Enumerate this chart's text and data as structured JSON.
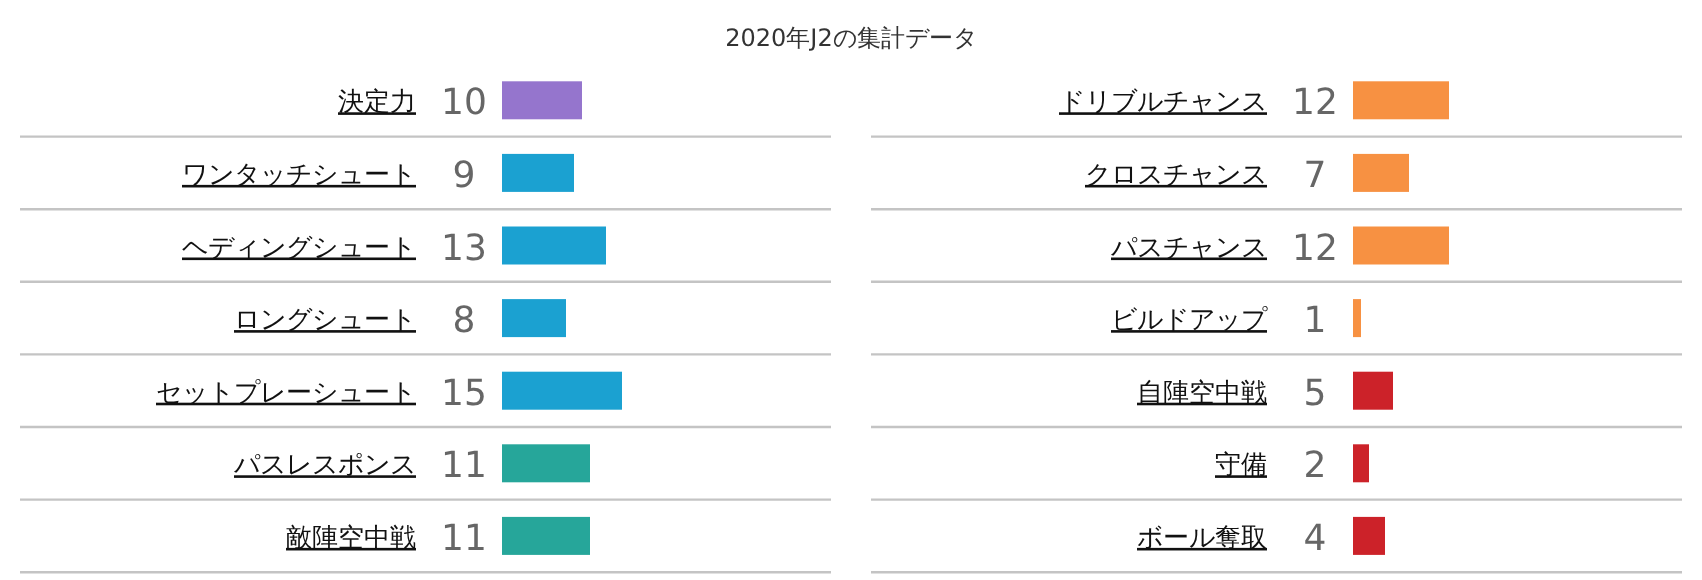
{
  "chart_data": [
    {
      "type": "other",
      "title": "2020年J2の集計データ"
    },
    {
      "type": "bar",
      "orientation": "horizontal",
      "data_labels": true,
      "categories": [
        "決定力",
        "ワンタッチシュート",
        "ヘディングシュート",
        "ロングシュート",
        "セットプレーシュート",
        "パスレスポンス",
        "敵陣空中戦"
      ],
      "values": [
        10,
        9,
        13,
        8,
        15,
        11,
        11
      ],
      "colors": [
        "#9575cd",
        "#1ba1d1",
        "#1ba1d1",
        "#1ba1d1",
        "#1ba1d1",
        "#26a69a",
        "#26a69a"
      ]
    },
    {
      "type": "bar",
      "orientation": "horizontal",
      "data_labels": true,
      "categories": [
        "ドリブルチャンス",
        "クロスチャンス",
        "パスチャンス",
        "ビルドアップ",
        "自陣空中戦",
        "守備",
        "ボール奪取"
      ],
      "values": [
        12,
        7,
        12,
        1,
        5,
        2,
        4
      ],
      "colors": [
        "#f79142",
        "#f79142",
        "#f79142",
        "#f79142",
        "#cc2229",
        "#cc2229",
        "#cc2229"
      ]
    }
  ]
}
